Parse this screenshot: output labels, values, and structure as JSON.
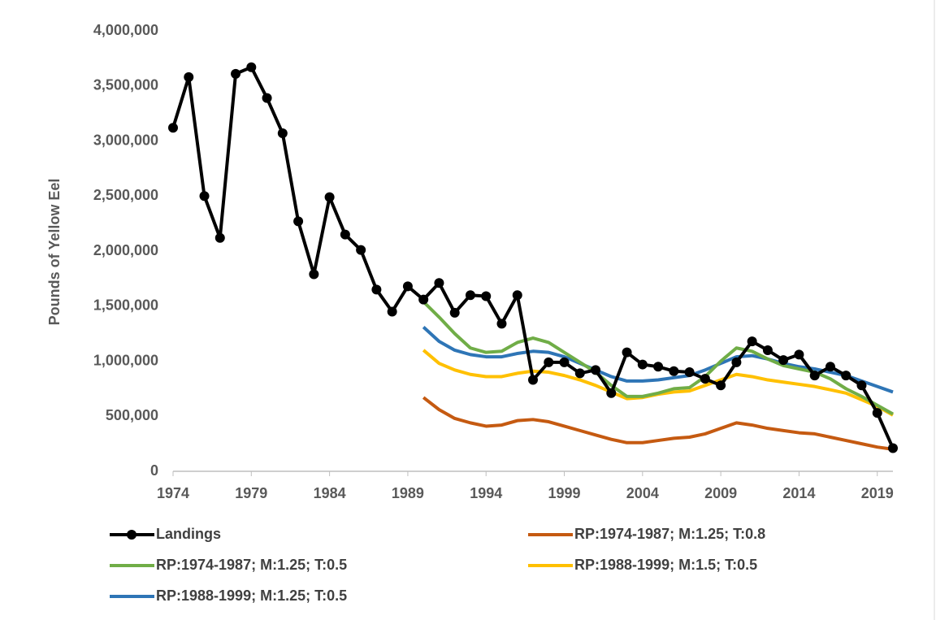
{
  "chart_data": {
    "type": "line",
    "y_label": "Pounds of Yellow Eel",
    "xlim": [
      1974,
      2020
    ],
    "xticks": [
      1974,
      1979,
      1984,
      1989,
      1994,
      1999,
      2004,
      2009,
      2014,
      2019
    ],
    "ylim": [
      0,
      4000000
    ],
    "yticks": [
      0,
      {
        "value": 500000,
        "label": "500,000"
      },
      {
        "value": 1000000,
        "label": "1,000,000"
      },
      {
        "value": 1500000,
        "label": "1,500,000"
      },
      {
        "value": 2000000,
        "label": "2,000,000"
      },
      {
        "value": 2500000,
        "label": "2,500,000"
      },
      {
        "value": 3000000,
        "label": "3,000,000"
      },
      {
        "value": 3500000,
        "label": "3,500,000"
      },
      {
        "value": 4000000,
        "label": "4,000,000"
      }
    ],
    "grid": false,
    "x": [
      1974,
      1975,
      1976,
      1977,
      1978,
      1979,
      1980,
      1981,
      1982,
      1983,
      1984,
      1985,
      1986,
      1987,
      1988,
      1989,
      1990,
      1991,
      1992,
      1993,
      1994,
      1995,
      1996,
      1997,
      1998,
      1999,
      2000,
      2001,
      2002,
      2003,
      2004,
      2005,
      2006,
      2007,
      2008,
      2009,
      2010,
      2011,
      2012,
      2013,
      2014,
      2015,
      2016,
      2017,
      2018,
      2019,
      2020
    ],
    "series": [
      {
        "name": "Landings",
        "color": "#000000",
        "markers": true,
        "values": [
          3120000,
          3580000,
          2500000,
          2120000,
          3610000,
          3670000,
          3390000,
          3070000,
          2270000,
          1790000,
          2490000,
          2150000,
          2010000,
          1650000,
          1450000,
          1680000,
          1560000,
          1710000,
          1440000,
          1600000,
          1590000,
          1340000,
          1600000,
          830000,
          990000,
          990000,
          890000,
          920000,
          710000,
          1080000,
          970000,
          950000,
          910000,
          900000,
          840000,
          780000,
          990000,
          1180000,
          1100000,
          1010000,
          1060000,
          870000,
          950000,
          870000,
          780000,
          530000,
          210000
        ]
      },
      {
        "name": "RP:1974-1987; M:1.25; T:0.8",
        "color": "#c55a11",
        "markers": false,
        "values": [
          null,
          null,
          null,
          null,
          null,
          null,
          null,
          null,
          null,
          null,
          null,
          null,
          null,
          null,
          null,
          null,
          670000,
          560000,
          480000,
          440000,
          410000,
          420000,
          460000,
          470000,
          450000,
          410000,
          370000,
          330000,
          290000,
          260000,
          260000,
          280000,
          300000,
          310000,
          340000,
          390000,
          440000,
          420000,
          390000,
          370000,
          350000,
          340000,
          310000,
          280000,
          250000,
          220000,
          200000
        ]
      },
      {
        "name": "RP:1974-1987; M:1.25; T:0.5",
        "color": "#70ad47",
        "markers": false,
        "values": [
          null,
          null,
          null,
          null,
          null,
          null,
          null,
          null,
          null,
          null,
          null,
          null,
          null,
          null,
          null,
          null,
          1540000,
          1400000,
          1250000,
          1120000,
          1080000,
          1090000,
          1170000,
          1210000,
          1170000,
          1080000,
          990000,
          900000,
          780000,
          680000,
          680000,
          710000,
          750000,
          760000,
          860000,
          1000000,
          1120000,
          1090000,
          1020000,
          960000,
          930000,
          900000,
          840000,
          750000,
          680000,
          600000,
          520000
        ]
      },
      {
        "name": "RP:1988-1999; M:1.5; T:0.5",
        "color": "#ffc000",
        "markers": false,
        "values": [
          null,
          null,
          null,
          null,
          null,
          null,
          null,
          null,
          null,
          null,
          null,
          null,
          null,
          null,
          null,
          null,
          1100000,
          980000,
          920000,
          880000,
          860000,
          860000,
          890000,
          910000,
          900000,
          870000,
          830000,
          780000,
          720000,
          660000,
          670000,
          700000,
          720000,
          730000,
          780000,
          830000,
          880000,
          860000,
          830000,
          810000,
          790000,
          770000,
          740000,
          710000,
          650000,
          590000,
          510000
        ]
      },
      {
        "name": "RP:1988-1999; M:1.25; T:0.5",
        "color": "#2e75b6",
        "markers": false,
        "values": [
          null,
          null,
          null,
          null,
          null,
          null,
          null,
          null,
          null,
          null,
          null,
          null,
          null,
          null,
          null,
          null,
          1310000,
          1180000,
          1100000,
          1060000,
          1040000,
          1040000,
          1070000,
          1090000,
          1080000,
          1040000,
          980000,
          920000,
          860000,
          820000,
          820000,
          830000,
          850000,
          870000,
          920000,
          980000,
          1040000,
          1050000,
          1020000,
          980000,
          950000,
          930000,
          900000,
          870000,
          820000,
          770000,
          720000
        ]
      }
    ]
  }
}
